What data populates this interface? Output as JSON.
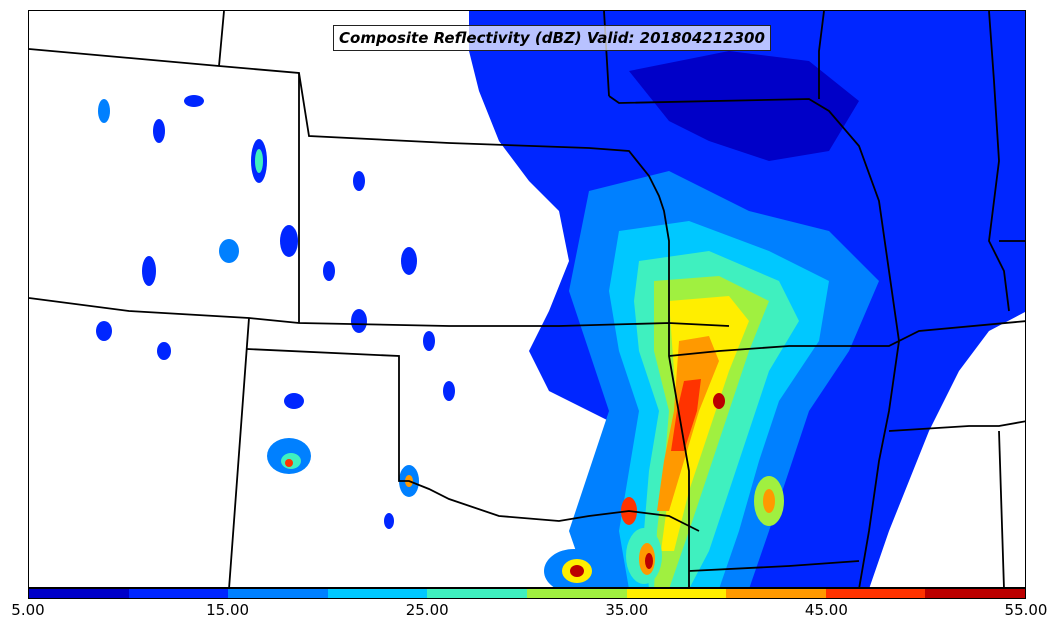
{
  "title": "Composite Reflectivity (dBZ) Valid: 201804212300",
  "colorbar": {
    "min": 5.0,
    "max": 55.0,
    "ticks": [
      "5.00",
      "15.00",
      "25.00",
      "35.00",
      "45.00",
      "55.00"
    ],
    "colors": [
      "#0000c8",
      "#0026ff",
      "#0080ff",
      "#00c8ff",
      "#3ff0bf",
      "#a0f040",
      "#ffee00",
      "#ff9900",
      "#ff3300",
      "#bb0000"
    ]
  },
  "legend": {
    "swatch_names": [
      "5-10 dBZ",
      "10-15 dBZ",
      "15-20 dBZ",
      "20-25 dBZ",
      "25-30 dBZ",
      "30-35 dBZ",
      "35-40 dBZ",
      "40-45 dBZ",
      "45-50 dBZ",
      "50-55 dBZ"
    ]
  }
}
